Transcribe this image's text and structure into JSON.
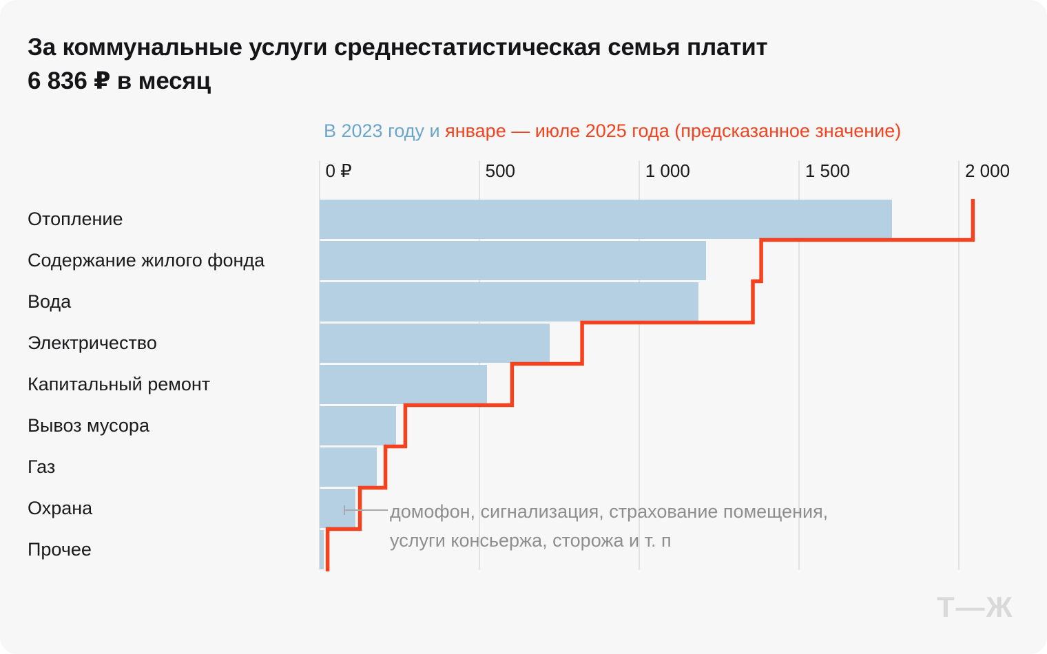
{
  "card": {
    "title": "За коммунальные услуги среднестатистическая семья платит\n6 836 ₽ в месяц",
    "logo": "Т—Ж"
  },
  "subtitle": {
    "part_2023": "В 2023 году и ",
    "part_2025": "январе — июле 2025 года (предсказанное значение)"
  },
  "annotation": {
    "text": "домофон, сигнализация, страхование помещения,\nуслуги консьержа, сторожа и т. п",
    "target_category": "Охрана"
  },
  "chart_data": {
    "type": "bar",
    "orientation": "horizontal",
    "title": "За коммунальные услуги среднестатистическая семья платит 6 836 ₽ в месяц",
    "subtitle": "В 2023 году и январе — июле 2025 года (предсказанное значение)",
    "unit": "₽ в месяц",
    "categories": [
      "Отопление",
      "Содержание жилого фонда",
      "Вода",
      "Электричество",
      "Капитальный ремонт",
      "Вывоз мусора",
      "Газ",
      "Охрана",
      "Прочее"
    ],
    "series": [
      {
        "name": "В 2023 году",
        "render": "bar",
        "color": "#b5cfe3",
        "values": [
          1790,
          1210,
          1185,
          720,
          525,
          240,
          180,
          113,
          15
        ]
      },
      {
        "name": "январе — июле 2025 года (предсказанное значение)",
        "render": "step-line",
        "color": "#f4421f",
        "values": [
          2044,
          1382,
          1356,
          822,
          603,
          269,
          207,
          127,
          26
        ]
      }
    ],
    "xlim": [
      0,
      2000
    ],
    "xtick_values": [
      0,
      500,
      1000,
      1500,
      2000
    ],
    "xtick_labels": [
      "0 ₽",
      "500",
      "1 000",
      "1 500",
      "2 000"
    ],
    "grid": true,
    "legend_position": "subtitle-inline"
  }
}
